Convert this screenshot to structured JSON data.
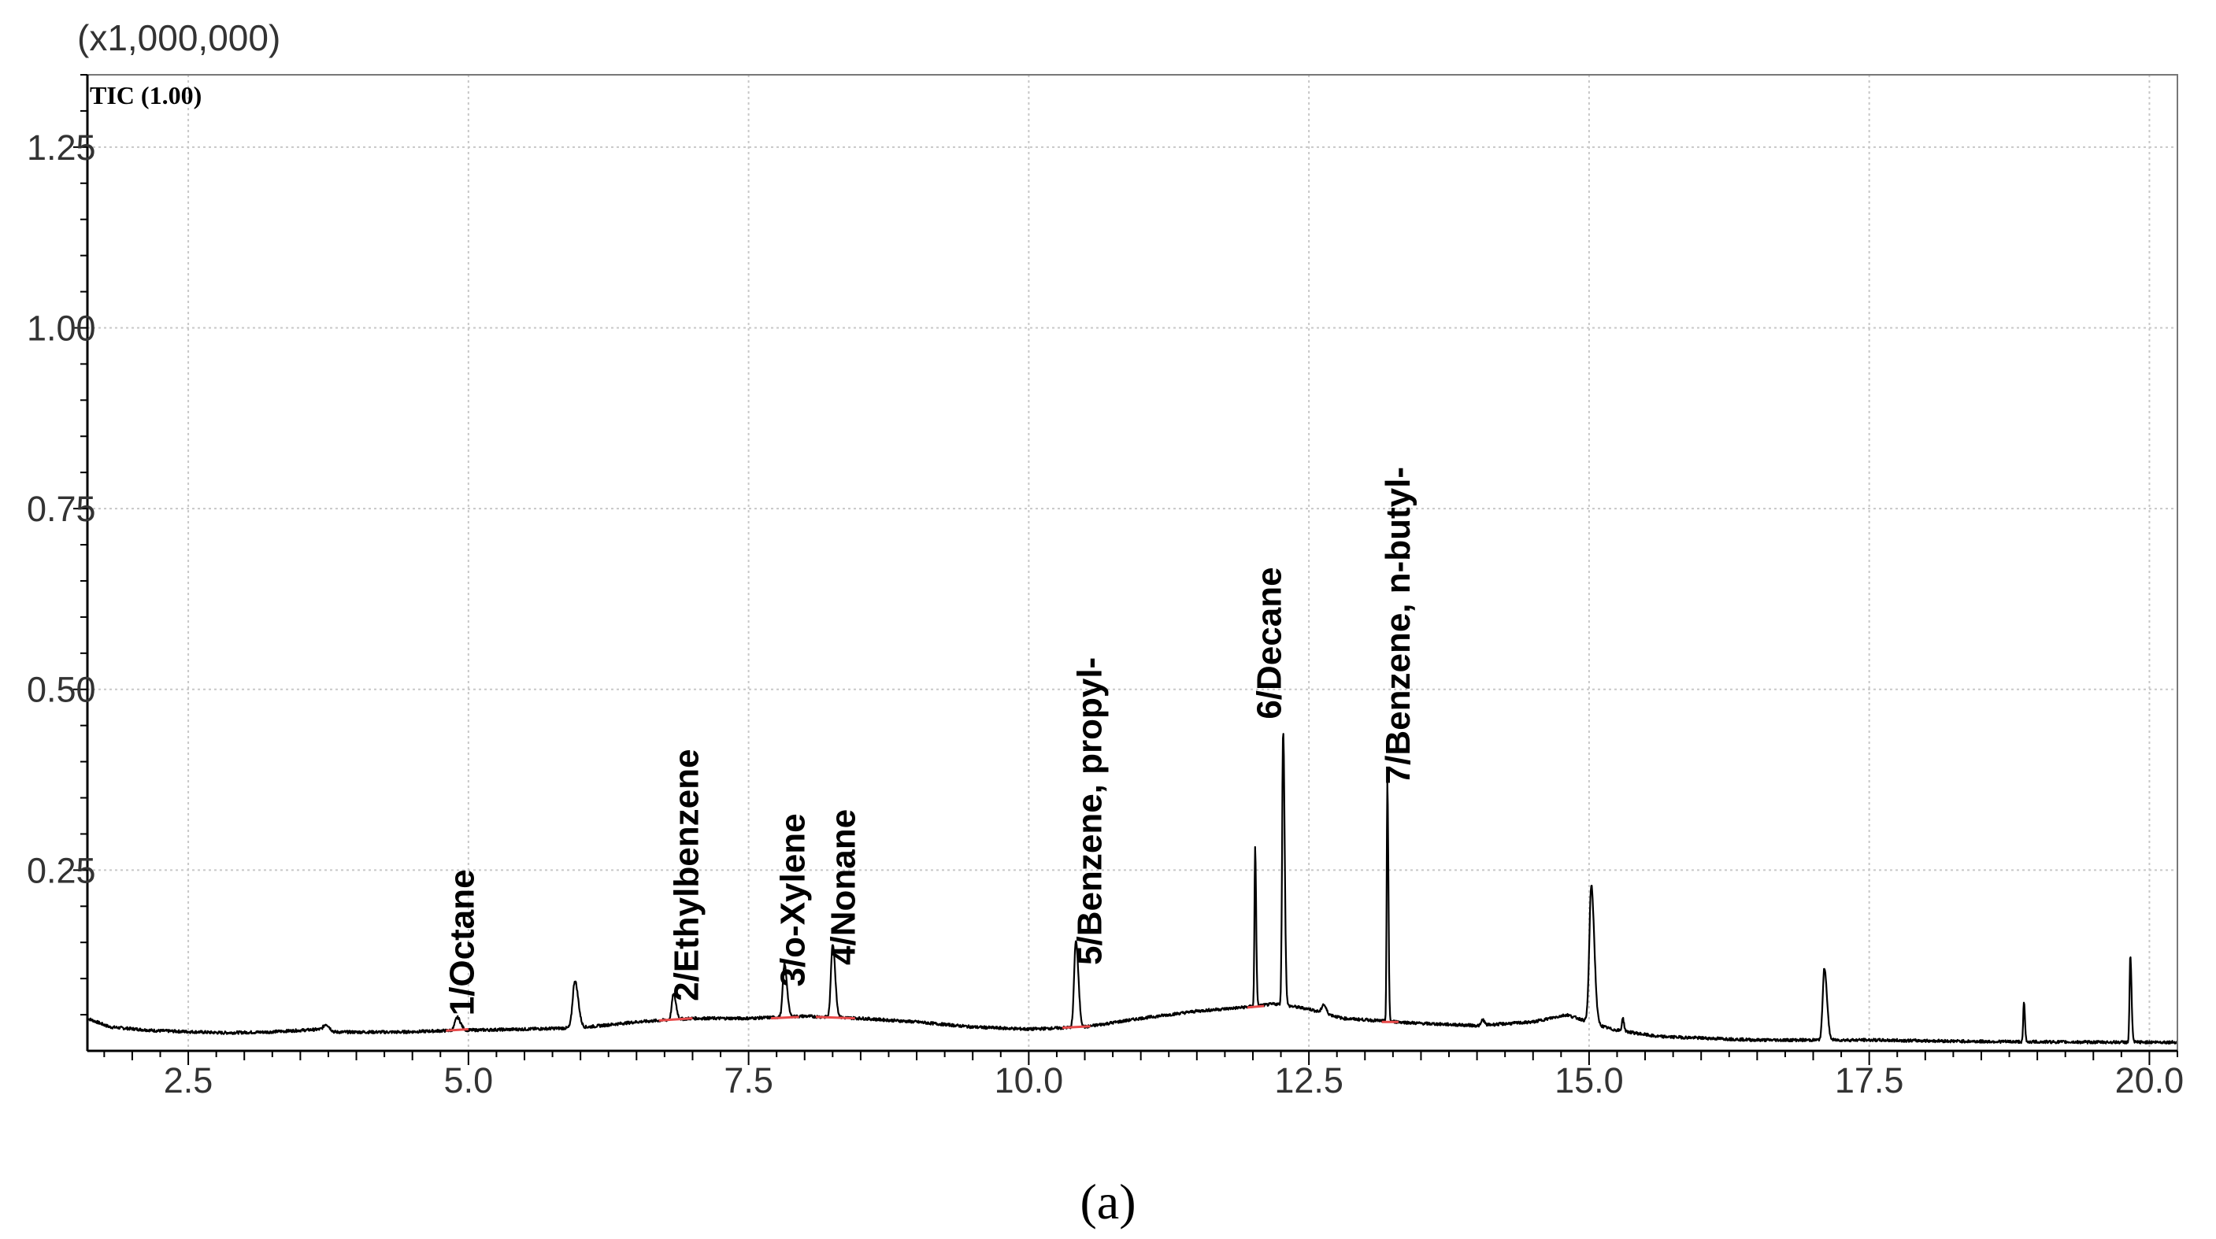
{
  "chart_data": {
    "type": "line",
    "title": "",
    "scale_label": "(x1,000,000)",
    "trace_label": "TIC (1.00)",
    "xlabel": "",
    "ylabel": "",
    "xlim": [
      1.6,
      20.25
    ],
    "ylim": [
      0.0,
      1.35
    ],
    "x_ticks": [
      2.5,
      5.0,
      7.5,
      10.0,
      12.5,
      15.0,
      17.5,
      20.0
    ],
    "x_tick_labels": [
      "2.5",
      "5.0",
      "7.5",
      "10.0",
      "12.5",
      "15.0",
      "17.5",
      "20.0"
    ],
    "y_ticks": [
      0.25,
      0.5,
      0.75,
      1.0,
      1.25
    ],
    "y_tick_labels": [
      "0.25",
      "0.50",
      "0.75",
      "1.00",
      "1.25"
    ],
    "grid": true,
    "baseline": [
      [
        1.6,
        0.045
      ],
      [
        1.8,
        0.033
      ],
      [
        2.2,
        0.028
      ],
      [
        2.8,
        0.025
      ],
      [
        3.2,
        0.026
      ],
      [
        3.7,
        0.03
      ],
      [
        3.8,
        0.026
      ],
      [
        4.4,
        0.026
      ],
      [
        4.8,
        0.028
      ],
      [
        5.5,
        0.03
      ],
      [
        6.0,
        0.032
      ],
      [
        6.5,
        0.04
      ],
      [
        7.0,
        0.045
      ],
      [
        7.5,
        0.045
      ],
      [
        8.0,
        0.048
      ],
      [
        8.5,
        0.045
      ],
      [
        9.0,
        0.04
      ],
      [
        9.5,
        0.033
      ],
      [
        10.0,
        0.03
      ],
      [
        10.5,
        0.033
      ],
      [
        11.0,
        0.045
      ],
      [
        11.5,
        0.055
      ],
      [
        11.9,
        0.06
      ],
      [
        12.2,
        0.065
      ],
      [
        12.5,
        0.058
      ],
      [
        12.8,
        0.045
      ],
      [
        13.5,
        0.038
      ],
      [
        14.0,
        0.035
      ],
      [
        14.5,
        0.04
      ],
      [
        14.8,
        0.05
      ],
      [
        15.2,
        0.03
      ],
      [
        15.6,
        0.02
      ],
      [
        16.5,
        0.015
      ],
      [
        17.5,
        0.015
      ],
      [
        18.5,
        0.013
      ],
      [
        19.5,
        0.012
      ],
      [
        20.25,
        0.012
      ]
    ],
    "peaks": [
      {
        "rt": 3.73,
        "height": 0.008,
        "width": 0.04
      },
      {
        "rt": 4.9,
        "height": 0.018,
        "width": 0.04
      },
      {
        "rt": 5.95,
        "height": 0.065,
        "width": 0.04
      },
      {
        "rt": 6.83,
        "height": 0.035,
        "width": 0.03
      },
      {
        "rt": 7.82,
        "height": 0.073,
        "width": 0.03
      },
      {
        "rt": 8.25,
        "height": 0.102,
        "width": 0.03
      },
      {
        "rt": 10.42,
        "height": 0.12,
        "width": 0.03
      },
      {
        "rt": 12.02,
        "height": 0.22,
        "width": 0.012
      },
      {
        "rt": 12.27,
        "height": 0.38,
        "width": 0.018
      },
      {
        "rt": 12.63,
        "height": 0.012,
        "width": 0.03
      },
      {
        "rt": 13.2,
        "height": 0.33,
        "width": 0.012
      },
      {
        "rt": 14.05,
        "height": 0.008,
        "width": 0.02
      },
      {
        "rt": 15.02,
        "height": 0.19,
        "width": 0.035
      },
      {
        "rt": 15.3,
        "height": 0.018,
        "width": 0.015
      },
      {
        "rt": 17.1,
        "height": 0.1,
        "width": 0.03
      },
      {
        "rt": 18.88,
        "height": 0.055,
        "width": 0.012
      },
      {
        "rt": 19.83,
        "height": 0.12,
        "width": 0.014
      }
    ],
    "integration_marks": [
      {
        "x1": 4.8,
        "y1": 0.028,
        "x2": 5.0,
        "y2": 0.03
      },
      {
        "x1": 6.7,
        "y1": 0.042,
        "x2": 7.0,
        "y2": 0.045
      },
      {
        "x1": 7.7,
        "y1": 0.045,
        "x2": 7.95,
        "y2": 0.047
      },
      {
        "x1": 8.1,
        "y1": 0.047,
        "x2": 8.45,
        "y2": 0.045
      },
      {
        "x1": 10.3,
        "y1": 0.032,
        "x2": 10.55,
        "y2": 0.034
      },
      {
        "x1": 11.95,
        "y1": 0.06,
        "x2": 12.1,
        "y2": 0.062
      },
      {
        "x1": 13.15,
        "y1": 0.04,
        "x2": 13.3,
        "y2": 0.04
      }
    ],
    "annotations": [
      {
        "x": 4.95,
        "y": 0.04,
        "text": "1/Octane"
      },
      {
        "x": 6.95,
        "y": 0.06,
        "text": "2/Ethylbenzene"
      },
      {
        "x": 7.9,
        "y": 0.08,
        "text": "3/o-Xylene"
      },
      {
        "x": 8.35,
        "y": 0.11,
        "text": "4/Nonane"
      },
      {
        "x": 10.55,
        "y": 0.11,
        "text": "5/Benzene, propyl-"
      },
      {
        "x": 12.15,
        "y": 0.45,
        "text": "6/Decane"
      },
      {
        "x": 13.3,
        "y": 0.36,
        "text": "7/Benzene, n-butyl-"
      }
    ],
    "caption": "(a)",
    "colors": {
      "trace": "#000000",
      "integration": "#e84a4a",
      "grid": "#c8c8c8",
      "axis": "#000000"
    }
  }
}
